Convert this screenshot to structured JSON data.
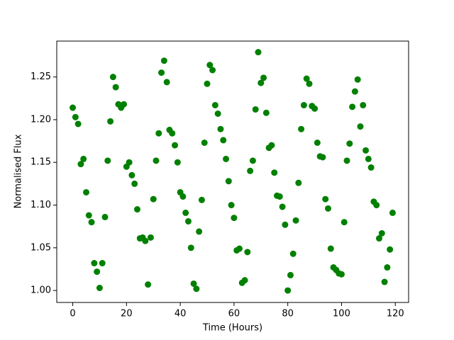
{
  "chart_data": {
    "type": "scatter",
    "xlabel": "Time (Hours)",
    "ylabel": "Normalised Flux",
    "color": "#008000",
    "x": [
      0,
      1,
      2,
      3,
      4,
      5,
      6,
      7,
      8,
      9,
      10,
      11,
      12,
      13,
      14,
      15,
      16,
      17,
      18,
      19,
      20,
      21,
      22,
      23,
      24,
      25,
      26,
      27,
      28,
      29,
      30,
      31,
      32,
      33,
      34,
      35,
      36,
      37,
      38,
      39,
      40,
      41,
      42,
      43,
      44,
      45,
      46,
      47,
      48,
      49,
      50,
      51,
      52,
      53,
      54,
      55,
      56,
      57,
      58,
      59,
      60,
      61,
      62,
      63,
      64,
      65,
      66,
      67,
      68,
      69,
      70,
      71,
      72,
      73,
      74,
      75,
      76,
      77,
      78,
      79,
      80,
      81,
      82,
      83,
      84,
      85,
      86,
      87,
      88,
      89,
      90,
      91,
      92,
      93,
      94,
      95,
      96,
      97,
      98,
      99,
      100,
      101,
      102,
      103,
      104,
      105,
      106,
      107,
      108,
      109,
      110,
      111,
      112,
      113,
      114,
      115,
      116,
      117,
      118,
      119
    ],
    "values": [
      1.214,
      1.203,
      1.195,
      1.148,
      1.154,
      1.115,
      1.088,
      1.08,
      1.032,
      1.022,
      1.003,
      1.032,
      1.086,
      1.152,
      1.198,
      1.25,
      1.238,
      1.218,
      1.214,
      1.218,
      1.145,
      1.15,
      1.135,
      1.125,
      1.095,
      1.061,
      1.062,
      1.058,
      1.007,
      1.062,
      1.107,
      1.152,
      1.184,
      1.255,
      1.269,
      1.244,
      1.188,
      1.184,
      1.17,
      1.15,
      1.115,
      1.11,
      1.091,
      1.081,
      1.05,
      1.008,
      1.002,
      1.069,
      1.106,
      1.173,
      1.242,
      1.264,
      1.258,
      1.217,
      1.207,
      1.189,
      1.176,
      1.154,
      1.128,
      1.1,
      1.085,
      1.047,
      1.049,
      1.009,
      1.012,
      1.045,
      1.14,
      1.152,
      1.212,
      1.279,
      1.243,
      1.249,
      1.208,
      1.167,
      1.17,
      1.138,
      1.111,
      1.11,
      1.098,
      1.077,
      1.0,
      1.018,
      1.043,
      1.082,
      1.126,
      1.189,
      1.217,
      1.248,
      1.242,
      1.216,
      1.213,
      1.173,
      1.157,
      1.156,
      1.107,
      1.096,
      1.049,
      1.027,
      1.024,
      1.02,
      1.019,
      1.08,
      1.152,
      1.172,
      1.215,
      1.233,
      1.247,
      1.192,
      1.217,
      1.164,
      1.154,
      1.144,
      1.104,
      1.1,
      1.061,
      1.067,
      1.01,
      1.027,
      1.048,
      1.091
    ],
    "xlim": [
      -5.95,
      124.95
    ],
    "xticks": [
      0,
      20,
      40,
      60,
      80,
      100,
      120
    ],
    "ylim": [
      0.986,
      1.292
    ],
    "yticks": [
      {
        "value": 1.0,
        "label": "1.00"
      },
      {
        "value": 1.05,
        "label": "1.05"
      },
      {
        "value": 1.1,
        "label": "1.10"
      },
      {
        "value": 1.15,
        "label": "1.15"
      },
      {
        "value": 1.2,
        "label": "1.20"
      },
      {
        "value": 1.25,
        "label": "1.25"
      }
    ],
    "grid": false
  }
}
